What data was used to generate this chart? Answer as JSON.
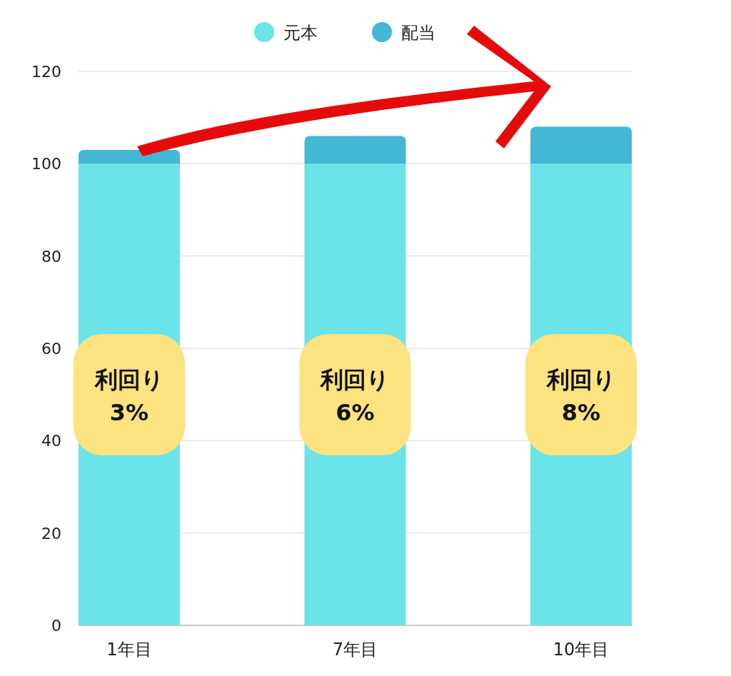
{
  "chart_data": {
    "type": "bar",
    "stacked": true,
    "categories": [
      "1年目",
      "7年目",
      "10年目"
    ],
    "series": [
      {
        "name": "元本",
        "color": "#6ae4e8",
        "values": [
          100,
          100,
          100
        ]
      },
      {
        "name": "配当",
        "color": "#42b7d6",
        "values": [
          3,
          6,
          8
        ]
      }
    ],
    "ylim": [
      0,
      120
    ],
    "yticks": [
      0,
      20,
      40,
      60,
      80,
      100,
      120
    ],
    "grid": "y",
    "legend": "top",
    "annotations": [
      "利回り 3%",
      "利回り 6%",
      "利回り 8%"
    ]
  }
}
